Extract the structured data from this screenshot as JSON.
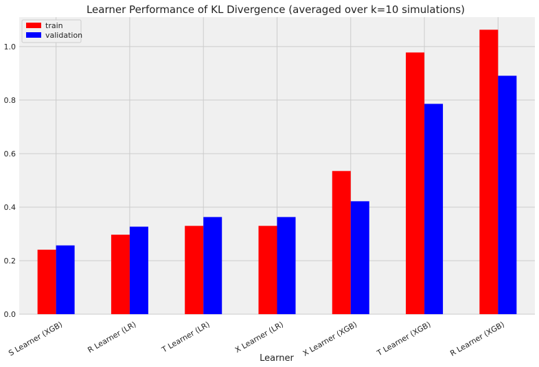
{
  "chart_data": {
    "type": "bar",
    "title": "Learner Performance of KL Divergence (averaged over k=10 simulations)",
    "xlabel": "Learner",
    "ylabel": "",
    "categories": [
      "S Learner (XGB)",
      "R Learner (LR)",
      "T Learner (LR)",
      "X Learner (LR)",
      "X Learner (XGB)",
      "T Learner (XGB)",
      "R Learner (XGB)"
    ],
    "series": [
      {
        "name": "train",
        "color": "#ff0000",
        "values": [
          0.241,
          0.297,
          0.33,
          0.33,
          0.535,
          0.978,
          1.063
        ]
      },
      {
        "name": "validation",
        "color": "#0000ff",
        "values": [
          0.257,
          0.327,
          0.363,
          0.363,
          0.422,
          0.786,
          0.891
        ]
      }
    ],
    "ylim": [
      0,
      1.11
    ],
    "yticks": [
      "0.0",
      "0.2",
      "0.4",
      "0.6",
      "0.8",
      "1.0"
    ],
    "grid": true,
    "legend_position": "top-left",
    "background_color": "#f0f0f0",
    "grid_color": "#cbcbcb"
  }
}
